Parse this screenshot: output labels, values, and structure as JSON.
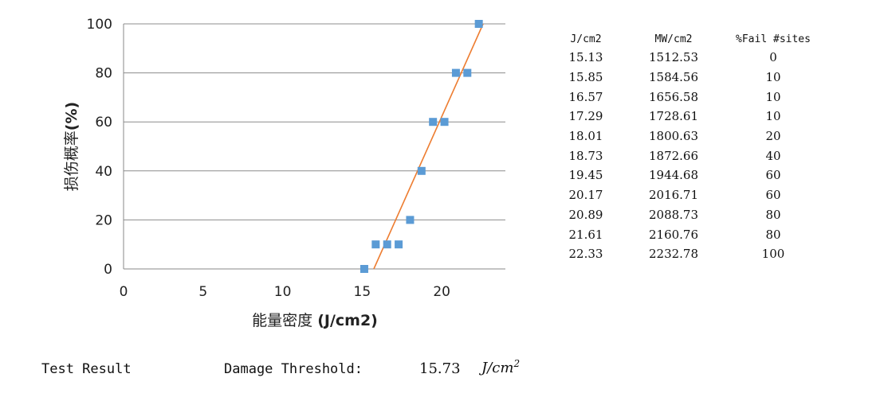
{
  "chart_data": {
    "type": "scatter",
    "xlabel_main": "能量密度",
    "xlabel_unit": "(J/cm2)",
    "ylabel_main": "损伤概率",
    "ylabel_unit": "(%)",
    "xlim": [
      0,
      24
    ],
    "ylim": [
      0,
      100
    ],
    "xticks": [
      "0",
      "5",
      "10",
      "15",
      "20"
    ],
    "xtick_values": [
      0,
      5,
      10,
      15,
      20
    ],
    "yticks": [
      "0",
      "20",
      "40",
      "60",
      "80",
      "100"
    ],
    "ytick_values": [
      0,
      20,
      40,
      60,
      80,
      100
    ],
    "grid": "horizontal",
    "points": [
      {
        "x": 15.13,
        "y": 0
      },
      {
        "x": 15.85,
        "y": 10
      },
      {
        "x": 16.57,
        "y": 10
      },
      {
        "x": 17.29,
        "y": 10
      },
      {
        "x": 18.01,
        "y": 20
      },
      {
        "x": 18.73,
        "y": 40
      },
      {
        "x": 19.45,
        "y": 60
      },
      {
        "x": 20.17,
        "y": 60
      },
      {
        "x": 20.89,
        "y": 80
      },
      {
        "x": 21.61,
        "y": 80
      },
      {
        "x": 22.33,
        "y": 100
      }
    ],
    "fit_line": {
      "x": [
        15.73,
        22.6
      ],
      "y": [
        0,
        100
      ]
    },
    "marker_color": "#5B9BD5",
    "fit_color": "#ED7D31"
  },
  "table": {
    "headers": [
      "J/cm2",
      "MW/cm2",
      "%Fail #sites"
    ],
    "rows": [
      [
        "15.13",
        "1512.53",
        "0"
      ],
      [
        "15.85",
        "1584.56",
        "10"
      ],
      [
        "16.57",
        "1656.58",
        "10"
      ],
      [
        "17.29",
        "1728.61",
        "10"
      ],
      [
        "18.01",
        "1800.63",
        "20"
      ],
      [
        "18.73",
        "1872.66",
        "40"
      ],
      [
        "19.45",
        "1944.68",
        "60"
      ],
      [
        "20.17",
        "2016.71",
        "60"
      ],
      [
        "20.89",
        "2088.73",
        "80"
      ],
      [
        "21.61",
        "2160.76",
        "80"
      ],
      [
        "22.33",
        "2232.78",
        "100"
      ]
    ]
  },
  "result": {
    "label": "Test Result",
    "threshold_label": "Damage Threshold:",
    "threshold_value": "15.73",
    "threshold_unit": "J/cm",
    "threshold_unit_exp": "2"
  }
}
